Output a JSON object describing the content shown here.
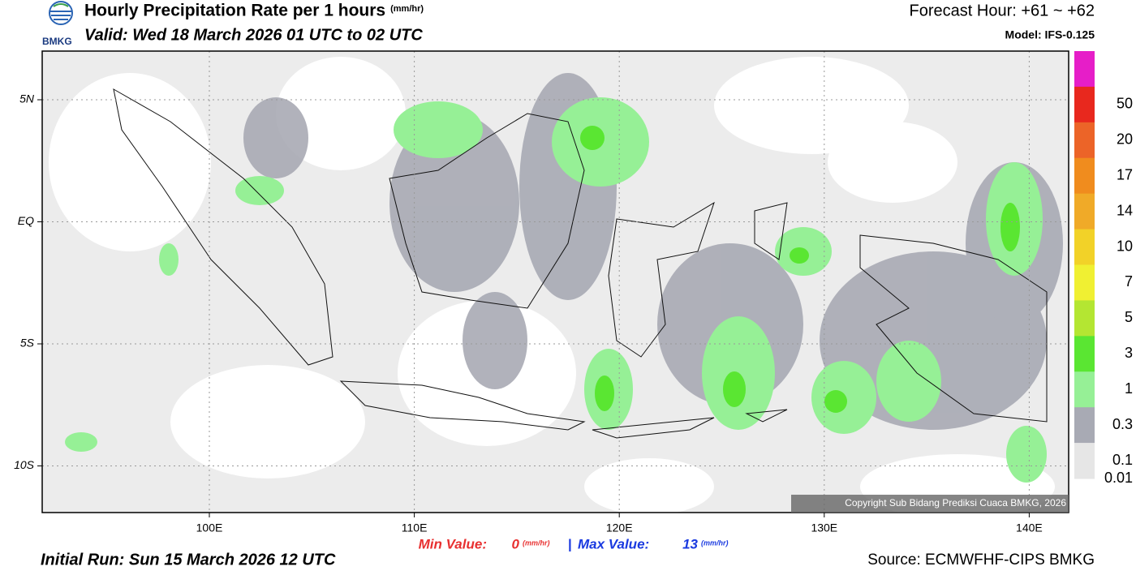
{
  "header": {
    "logo": "BMKG",
    "title": "Hourly Precipitation Rate per 1 hours",
    "title_unit": "(mm/hr)",
    "valid": "Valid: Wed 18 March 2026 01 UTC to 02 UTC",
    "forecast": "Forecast Hour: +61 ~ +62",
    "model": "Model: IFS-0.125"
  },
  "map": {
    "lon_labels": [
      "100E",
      "110E",
      "120E",
      "130E",
      "140E"
    ],
    "lat_labels": [
      "5N",
      "EQ",
      "5S",
      "10S"
    ],
    "copyright": "Copyright Sub Bidang Prediksi Cuaca BMKG, 2026"
  },
  "legend": {
    "labels": [
      "50",
      "20",
      "17",
      "14",
      "10",
      "7",
      "5",
      "3",
      "1",
      "0.3",
      "0.1",
      "0.01"
    ],
    "colors": [
      "#e61ec8",
      "#e8281e",
      "#ec6428",
      "#f08c1e",
      "#f0aa28",
      "#f2d228",
      "#f0f032",
      "#b4e632",
      "#5ae632",
      "#96f096",
      "#a8aab4",
      "#e6e6e6"
    ]
  },
  "footer": {
    "min_label": "Min Value:",
    "min_value": "0",
    "max_label": "Max Value:",
    "max_value": "13",
    "unit": "(mm/hr)",
    "separator": "|",
    "initial": "Initial Run: Sun 15 March 2026 12 UTC",
    "source": "Source: ECMWFHF-CIPS BMKG"
  }
}
